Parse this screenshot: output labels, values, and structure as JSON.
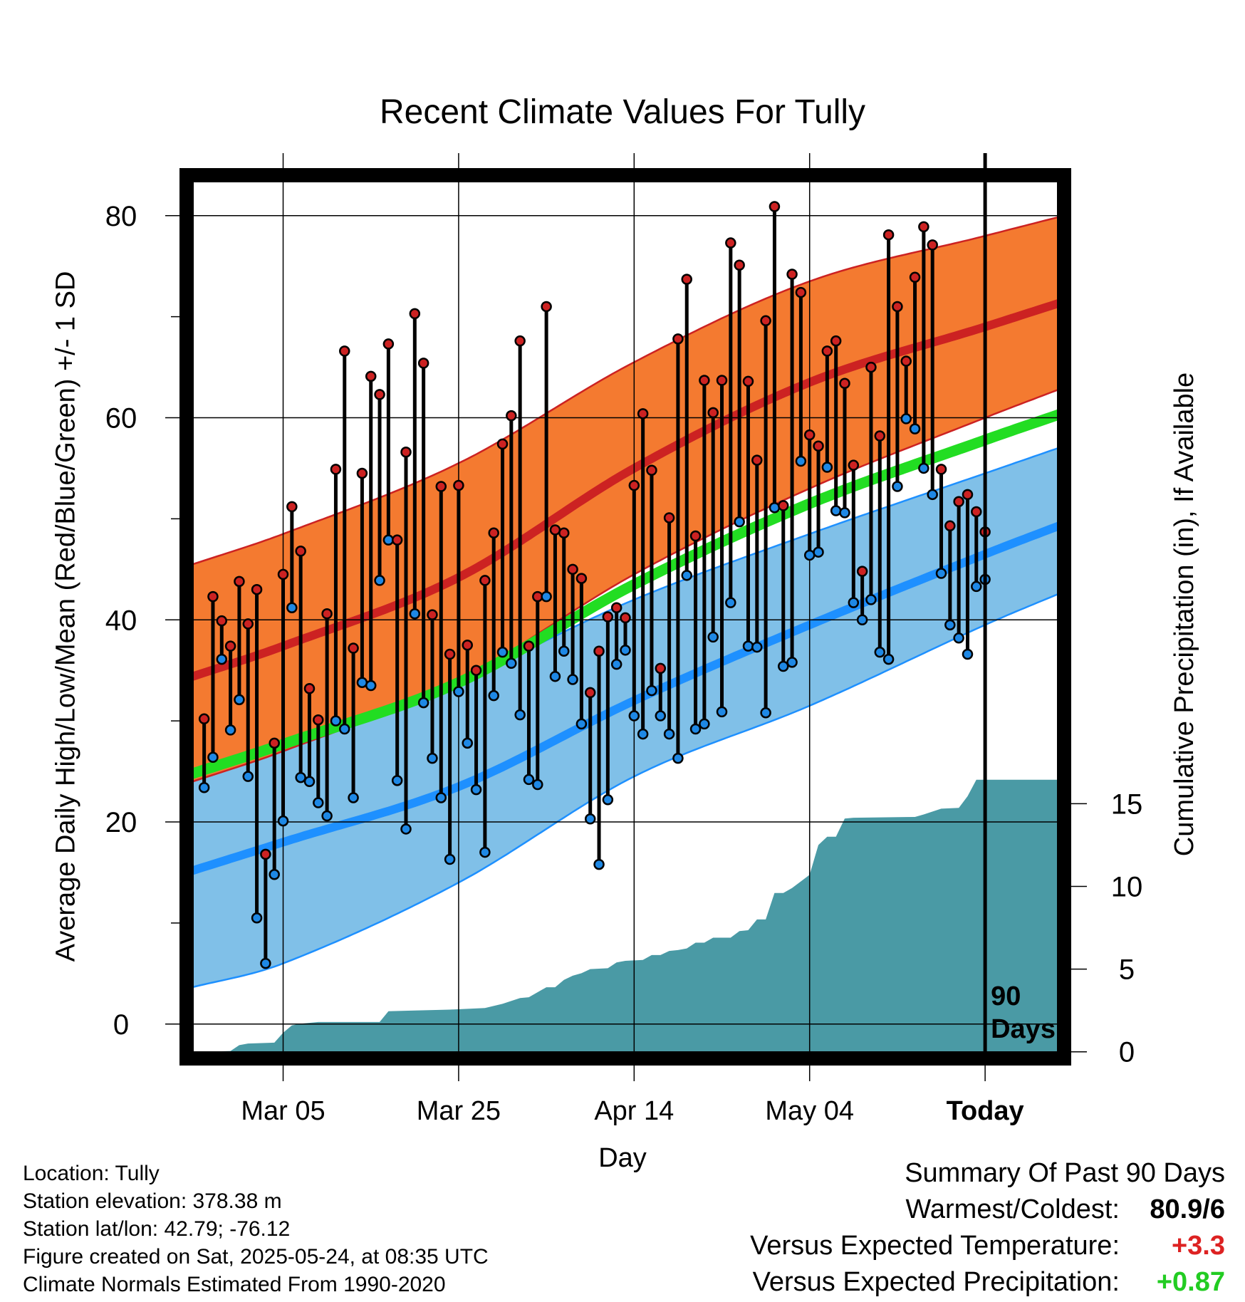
{
  "title": "Recent Climate Values For Tully",
  "y_axis_label": "Average Daily High/Low/Mean (Red/Blue/Green) +/- 1 SD",
  "y2_axis_label": "Cumulative Precipitation (in), If Available",
  "x_axis_label": "Day",
  "today_label": "90\nDays",
  "info": {
    "location": "Location: Tully",
    "elevation": "Station elevation: 378.38 m",
    "latlon": "Station lat/lon: 42.79; -76.12",
    "created": "Figure created on Sat, 2025-05-24, at 08:35 UTC",
    "normals": "Climate Normals Estimated From 1990-2020"
  },
  "summary": {
    "heading": "Summary Of Past 90 Days",
    "warm_cold_label": "Warmest/Coldest:",
    "warm_cold_value": "80.9/6",
    "temp_label": "Versus Expected Temperature:",
    "temp_value": "+3.3",
    "temp_color": "#dd2222",
    "precip_label": "Versus Expected Precipitation:",
    "precip_value": "+0.87",
    "precip_color": "#22cc22"
  },
  "colors": {
    "high_band": "#f47a30",
    "high_line": "#cc2222",
    "low_band": "#80c0e8",
    "low_line": "#1e90ff",
    "mean_line": "#22dd22",
    "precip_fill": "#4a9aa5",
    "high_dot": "#cc2222",
    "low_dot": "#1e88e5"
  },
  "chart_data": {
    "type": "line",
    "x_ticks": [
      {
        "label": "Mar 05",
        "day": 9
      },
      {
        "label": "Mar 25",
        "day": 29
      },
      {
        "label": "Apr 14",
        "day": 49
      },
      {
        "label": "May 04",
        "day": 69
      },
      {
        "label": "Today",
        "day": 89
      }
    ],
    "x_range": [
      -2,
      98
    ],
    "y_ticks": [
      0,
      20,
      40,
      60,
      80
    ],
    "y_range": [
      -3.4,
      84
    ],
    "y2_ticks": [
      0,
      5,
      10,
      15
    ],
    "y2_range": [
      -0.4,
      53
    ],
    "normals": {
      "high": [
        [
          -2,
          34.2
        ],
        [
          9,
          37.4
        ],
        [
          29,
          44.2
        ],
        [
          49,
          55.0
        ],
        [
          69,
          63.5
        ],
        [
          89,
          69.0
        ],
        [
          98,
          71.5
        ]
      ],
      "high_upper": [
        [
          -2,
          45.3
        ],
        [
          9,
          48.5
        ],
        [
          29,
          55.5
        ],
        [
          49,
          65.5
        ],
        [
          69,
          73.5
        ],
        [
          89,
          78.0
        ],
        [
          98,
          80.0
        ]
      ],
      "high_lower": [
        [
          -2,
          23.8
        ],
        [
          9,
          27.0
        ],
        [
          29,
          34.0
        ],
        [
          49,
          44.5
        ],
        [
          69,
          53.0
        ],
        [
          89,
          60.0
        ],
        [
          98,
          63.0
        ]
      ],
      "low": [
        [
          -2,
          15.0
        ],
        [
          9,
          18.0
        ],
        [
          29,
          23.5
        ],
        [
          49,
          32.0
        ],
        [
          69,
          39.5
        ],
        [
          89,
          46.5
        ],
        [
          98,
          49.5
        ]
      ],
      "low_upper": [
        [
          -2,
          24.5
        ],
        [
          9,
          28.0
        ],
        [
          29,
          34.0
        ],
        [
          49,
          42.0
        ],
        [
          69,
          48.5
        ],
        [
          89,
          54.5
        ],
        [
          98,
          57.2
        ]
      ],
      "low_lower": [
        [
          -2,
          3.5
        ],
        [
          9,
          6.0
        ],
        [
          29,
          14.0
        ],
        [
          49,
          24.5
        ],
        [
          69,
          31.5
        ],
        [
          89,
          39.5
        ],
        [
          98,
          42.8
        ]
      ],
      "mean": [
        [
          -2,
          24.6
        ],
        [
          9,
          27.7
        ],
        [
          29,
          33.8
        ],
        [
          49,
          43.5
        ],
        [
          69,
          51.5
        ],
        [
          89,
          57.8
        ],
        [
          98,
          60.5
        ]
      ]
    },
    "series": [
      {
        "name": "High",
        "values": [
          30.2,
          42.3,
          39.9,
          37.4,
          43.8,
          39.6,
          43.0,
          16.8,
          27.8,
          44.5,
          51.2,
          46.8,
          33.2,
          30.1,
          40.6,
          54.9,
          66.6,
          37.2,
          54.5,
          64.1,
          62.3,
          67.3,
          47.9,
          56.6,
          70.3,
          65.4,
          40.5,
          53.2,
          36.6,
          53.3,
          37.5,
          35.0,
          43.9,
          48.6,
          57.4,
          60.2,
          67.6,
          37.4,
          42.3,
          71.0,
          48.9,
          48.6,
          45.0,
          44.1,
          32.8,
          36.9,
          40.3,
          41.2,
          40.2,
          53.3,
          60.4,
          54.8,
          35.2,
          50.1,
          67.8,
          73.7,
          48.3,
          63.7,
          60.5,
          63.7,
          77.3,
          75.1,
          63.6,
          55.8,
          69.6,
          80.9,
          51.3,
          74.2,
          72.4,
          58.3,
          57.2,
          66.6,
          67.6,
          63.4,
          55.3,
          44.8,
          65.0,
          58.2,
          78.1,
          71.0,
          65.6,
          73.9,
          78.9,
          77.1,
          54.9,
          49.3,
          51.7,
          52.4,
          50.7,
          48.7
        ]
      },
      {
        "name": "Low",
        "values": [
          23.4,
          26.4,
          36.1,
          29.1,
          32.1,
          24.5,
          10.5,
          6.0,
          14.8,
          20.1,
          41.2,
          24.4,
          24.0,
          21.9,
          20.6,
          30.0,
          29.2,
          22.4,
          33.8,
          33.5,
          43.9,
          47.9,
          24.1,
          19.3,
          40.6,
          31.8,
          26.3,
          22.4,
          16.3,
          32.9,
          27.8,
          23.2,
          17.0,
          32.5,
          36.8,
          35.7,
          30.6,
          24.2,
          23.7,
          42.3,
          34.4,
          36.9,
          34.1,
          29.7,
          20.3,
          15.8,
          22.2,
          35.6,
          37.0,
          30.5,
          28.7,
          33.0,
          30.5,
          28.7,
          26.3,
          44.4,
          29.2,
          29.7,
          38.3,
          30.9,
          41.7,
          49.7,
          37.4,
          37.3,
          30.8,
          51.1,
          35.4,
          35.8,
          55.7,
          46.4,
          46.7,
          55.1,
          50.8,
          50.6,
          41.7,
          40.0,
          42.0,
          36.8,
          36.1,
          53.2,
          59.9,
          58.9,
          55.0,
          52.4,
          44.6,
          39.5,
          38.2,
          36.6,
          43.3,
          44.0
        ]
      }
    ],
    "precipitation": [
      [
        -2,
        0.0
      ],
      [
        0,
        0.0
      ],
      [
        3,
        0.05
      ],
      [
        4,
        0.4
      ],
      [
        5,
        0.5
      ],
      [
        8,
        0.55
      ],
      [
        9,
        1.15
      ],
      [
        10,
        1.6
      ],
      [
        11,
        1.7
      ],
      [
        13,
        1.8
      ],
      [
        20,
        1.8
      ],
      [
        21,
        2.45
      ],
      [
        24,
        2.5
      ],
      [
        28,
        2.55
      ],
      [
        32,
        2.65
      ],
      [
        34,
        2.9
      ],
      [
        36,
        3.25
      ],
      [
        37,
        3.3
      ],
      [
        39,
        3.9
      ],
      [
        40,
        3.9
      ],
      [
        41,
        4.35
      ],
      [
        42,
        4.6
      ],
      [
        43,
        4.75
      ],
      [
        44,
        5.0
      ],
      [
        46,
        5.05
      ],
      [
        47,
        5.4
      ],
      [
        48,
        5.5
      ],
      [
        50,
        5.55
      ],
      [
        51,
        5.85
      ],
      [
        52,
        5.85
      ],
      [
        53,
        6.1
      ],
      [
        54,
        6.15
      ],
      [
        55,
        6.25
      ],
      [
        56,
        6.6
      ],
      [
        57,
        6.6
      ],
      [
        58,
        6.9
      ],
      [
        60,
        6.9
      ],
      [
        61,
        7.3
      ],
      [
        62,
        7.35
      ],
      [
        63,
        8.0
      ],
      [
        64,
        8.0
      ],
      [
        65,
        9.6
      ],
      [
        66,
        9.6
      ],
      [
        67,
        9.9
      ],
      [
        68,
        10.3
      ],
      [
        69,
        10.7
      ],
      [
        70,
        12.5
      ],
      [
        71,
        13.0
      ],
      [
        72,
        13.0
      ],
      [
        73,
        14.1
      ],
      [
        74,
        14.15
      ],
      [
        81,
        14.2
      ],
      [
        82,
        14.35
      ],
      [
        84,
        14.7
      ],
      [
        86,
        14.75
      ],
      [
        87,
        15.45
      ],
      [
        88,
        16.45
      ],
      [
        98,
        16.45
      ]
    ],
    "precipitation_total_in": 16.45,
    "grid": true,
    "today_day": 89
  }
}
